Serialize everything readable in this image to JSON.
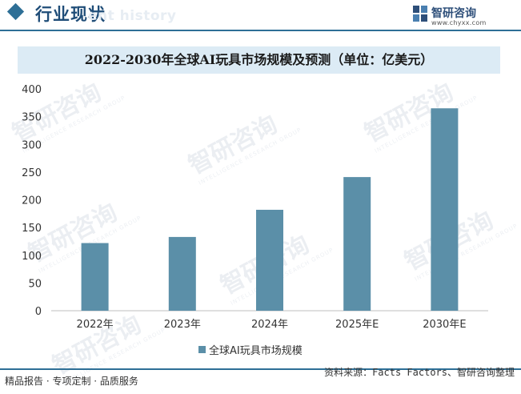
{
  "header": {
    "title": "行业现状",
    "watermark_text": "ent history",
    "brand_name": "智研咨询",
    "brand_url": "www.chyxx.com"
  },
  "watermark": {
    "text": "智研咨询",
    "subtext": "INTELLIGENCE RESEARCH GROUP"
  },
  "chart_data": {
    "type": "bar",
    "title": "2022-2030年全球AI玩具市场规模及预测（单位：亿美元）",
    "categories": [
      "2022年",
      "2023年",
      "2024年",
      "2025年E",
      "2030年E"
    ],
    "series": [
      {
        "name": "全球AI玩具市场规模",
        "values": [
          122,
          133,
          182,
          241,
          365
        ],
        "color": "#5b8fa8"
      }
    ],
    "ylim": [
      0,
      400
    ],
    "yticks": [
      0,
      50,
      100,
      150,
      200,
      250,
      300,
      350,
      400
    ],
    "legend_position": "bottom",
    "grid": false
  },
  "footer": {
    "left": "精品报告 · 专项定制 · 品质服务",
    "right": "资料来源：Facts Factors、智研咨询整理"
  }
}
